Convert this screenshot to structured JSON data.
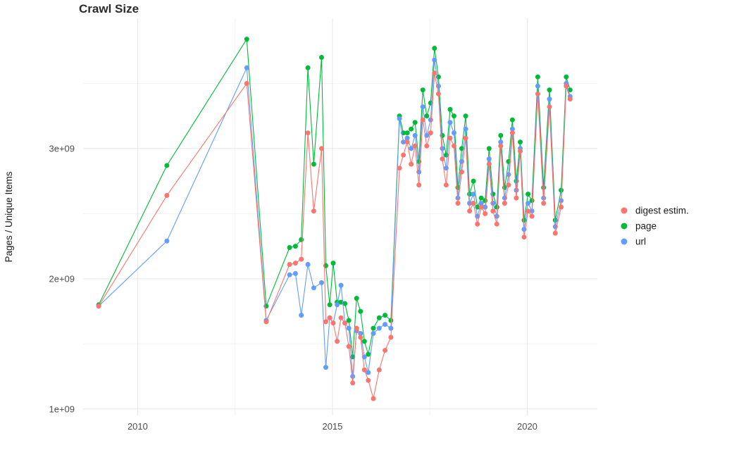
{
  "colors": {
    "background": "#ffffff",
    "grid_major": "#e6e6e6",
    "grid_minor": "#f3f3f3",
    "tick_text": "#4d4d4d",
    "title_text": "#2b2b2b"
  },
  "chart_data": {
    "type": "line",
    "title": "Crawl Size",
    "xlabel": "",
    "ylabel": "Pages / Unique Items",
    "grid": true,
    "legend_position": "right",
    "y_unit": "billions (values shown as 1e+09 on axis)",
    "xlim": [
      2008.6,
      2021.8
    ],
    "ylim": [
      0.95,
      4.0
    ],
    "x_ticks": [
      2010,
      2015,
      2020
    ],
    "x_tick_labels": [
      "2010",
      "2015",
      "2020"
    ],
    "x_minor_gridlines": [
      2012.5,
      2017.5
    ],
    "y_ticks": [
      1,
      2,
      3
    ],
    "y_tick_labels": [
      "1e+09",
      "2e+09",
      "3e+09"
    ],
    "y_minor_gridlines": [
      1.5,
      2.5,
      3.5
    ],
    "x": [
      2009.0,
      2010.75,
      2012.8,
      2013.3,
      2013.9,
      2014.05,
      2014.2,
      2014.37,
      2014.52,
      2014.72,
      2014.83,
      2014.93,
      2015.02,
      2015.12,
      2015.22,
      2015.32,
      2015.42,
      2015.52,
      2015.62,
      2015.72,
      2015.82,
      2015.92,
      2016.05,
      2016.2,
      2016.35,
      2016.5,
      2016.72,
      2016.82,
      2016.92,
      2017.02,
      2017.12,
      2017.22,
      2017.32,
      2017.42,
      2017.52,
      2017.62,
      2017.72,
      2017.82,
      2017.92,
      2018.02,
      2018.12,
      2018.22,
      2018.32,
      2018.42,
      2018.52,
      2018.62,
      2018.72,
      2018.82,
      2018.92,
      2019.02,
      2019.12,
      2019.22,
      2019.32,
      2019.42,
      2019.52,
      2019.62,
      2019.72,
      2019.82,
      2019.92,
      2020.02,
      2020.12,
      2020.27,
      2020.42,
      2020.57,
      2020.72,
      2020.87,
      2021.0,
      2021.1
    ],
    "series": [
      {
        "name": "digest estim.",
        "color": "#F8766D",
        "values": [
          1.79,
          2.64,
          3.5,
          1.67,
          2.11,
          2.12,
          2.15,
          3.12,
          2.52,
          3.0,
          1.67,
          1.7,
          1.66,
          1.52,
          1.7,
          1.66,
          1.48,
          1.2,
          1.62,
          1.55,
          1.3,
          1.22,
          1.08,
          1.3,
          1.45,
          1.55,
          2.85,
          2.95,
          3.05,
          2.88,
          3.02,
          2.72,
          3.22,
          3.02,
          3.12,
          3.58,
          3.42,
          2.92,
          2.72,
          3.08,
          3.02,
          2.58,
          2.82,
          3.08,
          2.52,
          2.58,
          2.42,
          2.55,
          2.5,
          2.88,
          2.52,
          2.42,
          3.02,
          2.58,
          2.72,
          3.12,
          2.62,
          2.98,
          2.32,
          2.52,
          2.48,
          3.42,
          2.58,
          3.32,
          2.35,
          2.55,
          3.48,
          3.38
        ]
      },
      {
        "name": "page",
        "color": "#00BA38",
        "values": [
          1.8,
          2.87,
          3.84,
          1.79,
          2.24,
          2.25,
          2.3,
          3.62,
          2.88,
          3.7,
          2.1,
          1.8,
          2.12,
          1.82,
          1.82,
          1.81,
          1.68,
          1.4,
          1.85,
          1.75,
          1.52,
          1.42,
          1.62,
          1.7,
          1.72,
          1.68,
          3.25,
          3.12,
          3.12,
          3.15,
          3.2,
          2.9,
          3.45,
          3.25,
          3.35,
          3.77,
          3.55,
          3.1,
          2.95,
          3.3,
          3.25,
          2.7,
          3.0,
          3.25,
          2.65,
          2.75,
          2.55,
          2.62,
          2.6,
          3.0,
          2.65,
          2.55,
          3.1,
          2.7,
          2.9,
          3.22,
          2.75,
          3.05,
          2.45,
          2.65,
          2.6,
          3.55,
          2.7,
          3.45,
          2.45,
          2.68,
          3.55,
          3.45
        ]
      },
      {
        "name": "url",
        "color": "#619CFF",
        "values": [
          1.79,
          2.29,
          3.62,
          1.68,
          2.03,
          2.04,
          1.72,
          2.11,
          1.93,
          1.97,
          1.32,
          1.7,
          1.66,
          1.8,
          1.95,
          1.66,
          1.62,
          1.25,
          1.6,
          1.58,
          1.4,
          1.28,
          1.58,
          1.62,
          1.65,
          1.62,
          3.23,
          3.05,
          3.08,
          3.0,
          3.1,
          2.82,
          3.32,
          3.1,
          3.22,
          3.68,
          3.48,
          3.0,
          2.85,
          3.2,
          3.12,
          2.62,
          2.9,
          3.15,
          2.58,
          2.65,
          2.48,
          2.58,
          2.55,
          2.92,
          2.58,
          2.48,
          3.05,
          2.62,
          2.8,
          3.15,
          2.68,
          3.0,
          2.38,
          2.58,
          2.52,
          3.48,
          2.62,
          3.38,
          2.4,
          2.6,
          3.5,
          3.4
        ]
      }
    ]
  }
}
